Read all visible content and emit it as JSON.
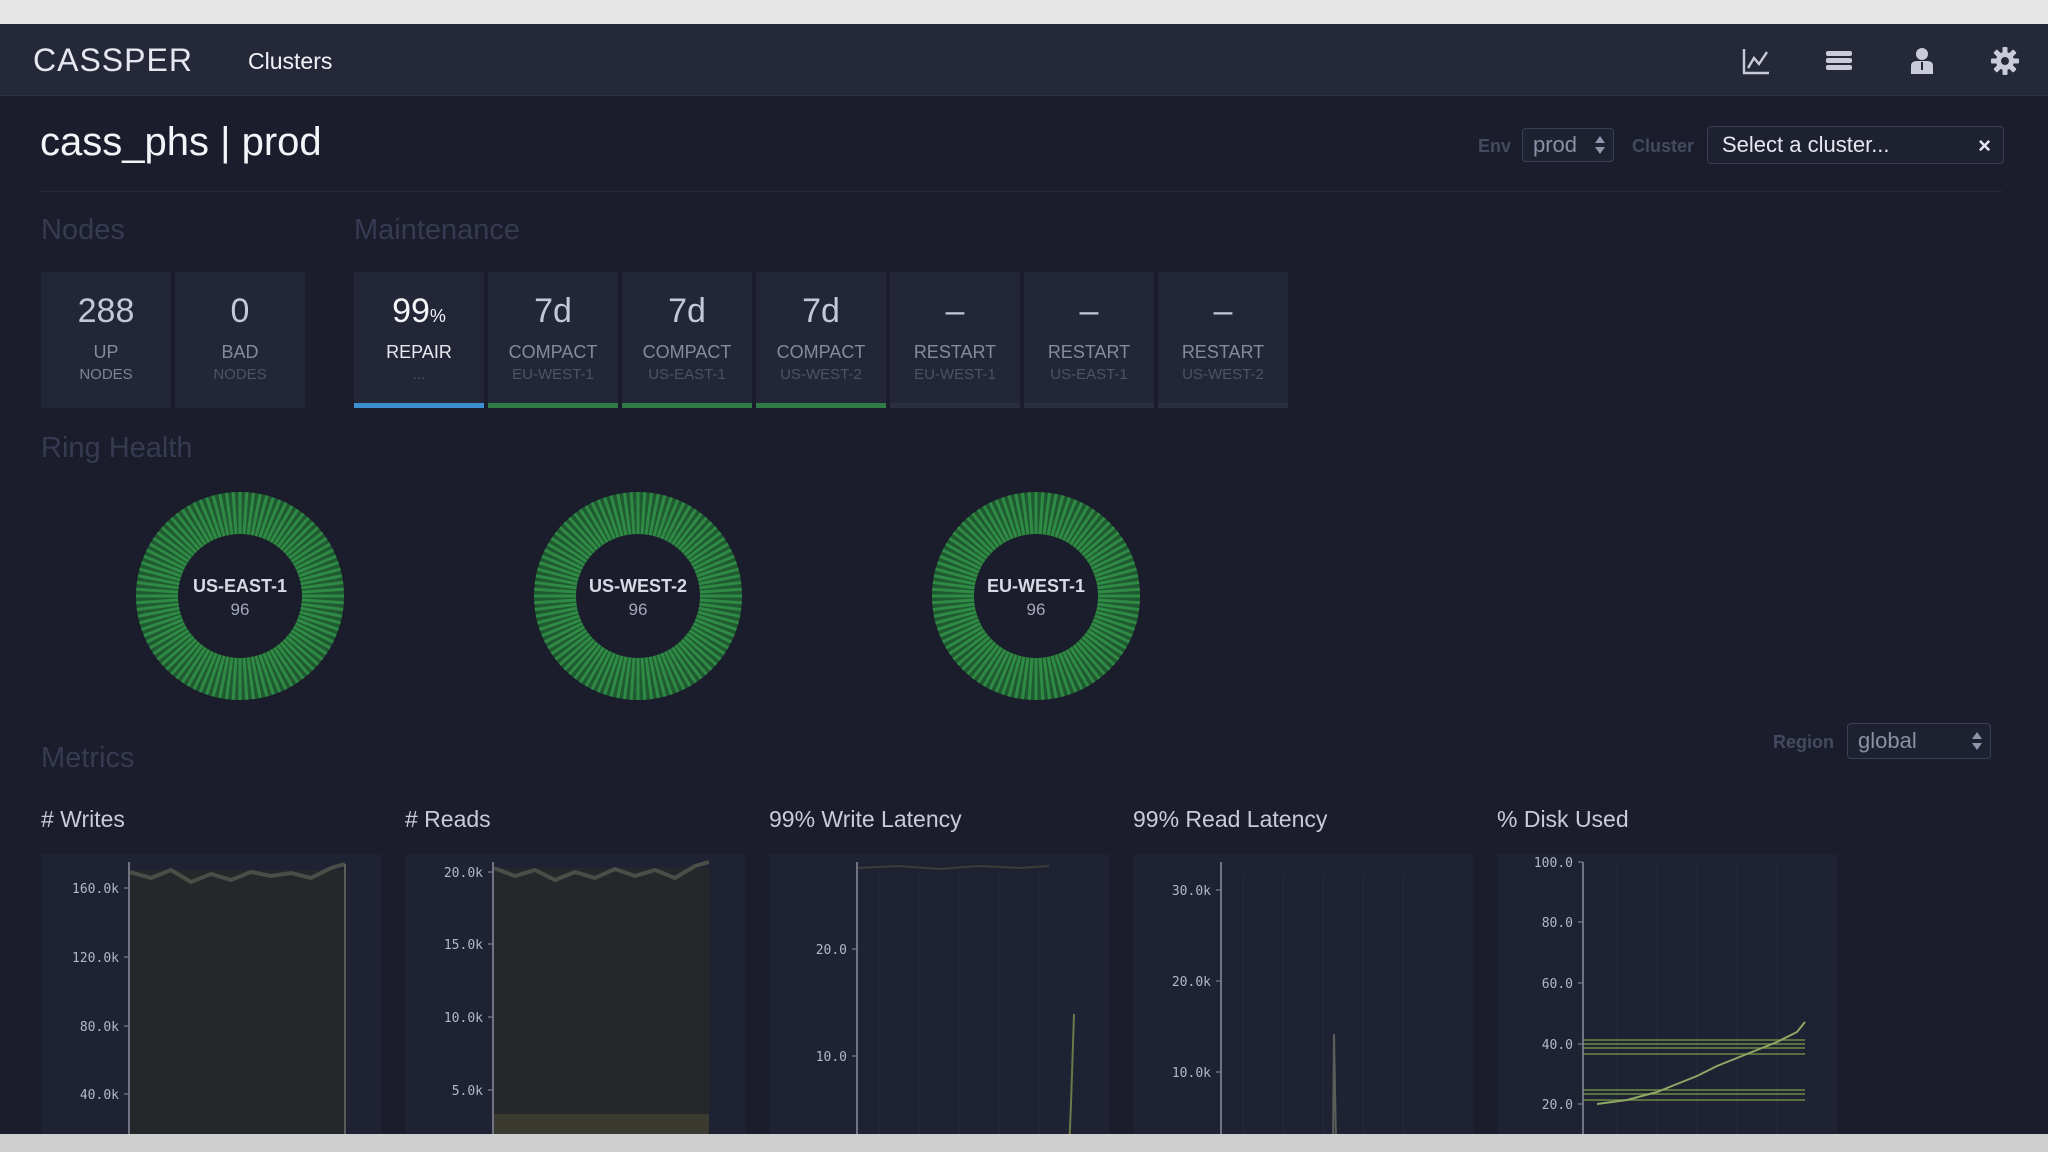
{
  "app": {
    "brand": "CASSPER",
    "nav": {
      "clusters": "Clusters"
    }
  },
  "header": {
    "title": "cass_phs | prod",
    "env_label": "Env",
    "env_value": "prod",
    "cluster_label": "Cluster",
    "cluster_placeholder": "Select a cluster...",
    "clear_symbol": "×"
  },
  "nodes": {
    "title": "Nodes",
    "cards": [
      {
        "value": "288",
        "line1": "UP",
        "line2": "NODES"
      },
      {
        "value": "0",
        "line1": "BAD",
        "line2": "NODES"
      }
    ]
  },
  "maintenance": {
    "title": "Maintenance",
    "cards": [
      {
        "value": "99",
        "unit": "%",
        "line1": "REPAIR",
        "line2": "...",
        "bar_color": "#3b8fd1"
      },
      {
        "value": "7d",
        "unit": "",
        "line1": "COMPACT",
        "line2": "EU-WEST-1",
        "bar_color": "#2f7a45"
      },
      {
        "value": "7d",
        "unit": "",
        "line1": "COMPACT",
        "line2": "US-EAST-1",
        "bar_color": "#2f7a45"
      },
      {
        "value": "7d",
        "unit": "",
        "line1": "COMPACT",
        "line2": "US-WEST-2",
        "bar_color": "#2f7a45"
      },
      {
        "value": "–",
        "unit": "",
        "line1": "RESTART",
        "line2": "EU-WEST-1",
        "bar_color": "#2a2e40"
      },
      {
        "value": "–",
        "unit": "",
        "line1": "RESTART",
        "line2": "US-EAST-1",
        "bar_color": "#2a2e40"
      },
      {
        "value": "–",
        "unit": "",
        "line1": "RESTART",
        "line2": "US-WEST-2",
        "bar_color": "#2a2e40"
      }
    ]
  },
  "ring_health": {
    "title": "Ring Health",
    "ring_color": "#2f8a45",
    "rings": [
      {
        "name": "US-EAST-1",
        "count": "96",
        "segments": 96
      },
      {
        "name": "US-WEST-2",
        "count": "96",
        "segments": 96
      },
      {
        "name": "EU-WEST-1",
        "count": "96",
        "segments": 96
      }
    ]
  },
  "metrics": {
    "title": "Metrics",
    "region_label": "Region",
    "region_value": "global",
    "charts": [
      {
        "title": "# Writes",
        "ticks": [
          "160.0k",
          "120.0k",
          "80.0k",
          "40.0k"
        ]
      },
      {
        "title": "# Reads",
        "ticks": [
          "20.0k",
          "15.0k",
          "10.0k",
          "5.0k"
        ]
      },
      {
        "title": "99% Write Latency",
        "ticks": [
          "20.0",
          "10.0"
        ]
      },
      {
        "title": "99% Read Latency",
        "ticks": [
          "30.0k",
          "20.0k",
          "10.0k"
        ]
      },
      {
        "title": "% Disk Used",
        "ticks": [
          "100.0",
          "80.0",
          "60.0",
          "40.0",
          "20.0"
        ]
      }
    ]
  }
}
